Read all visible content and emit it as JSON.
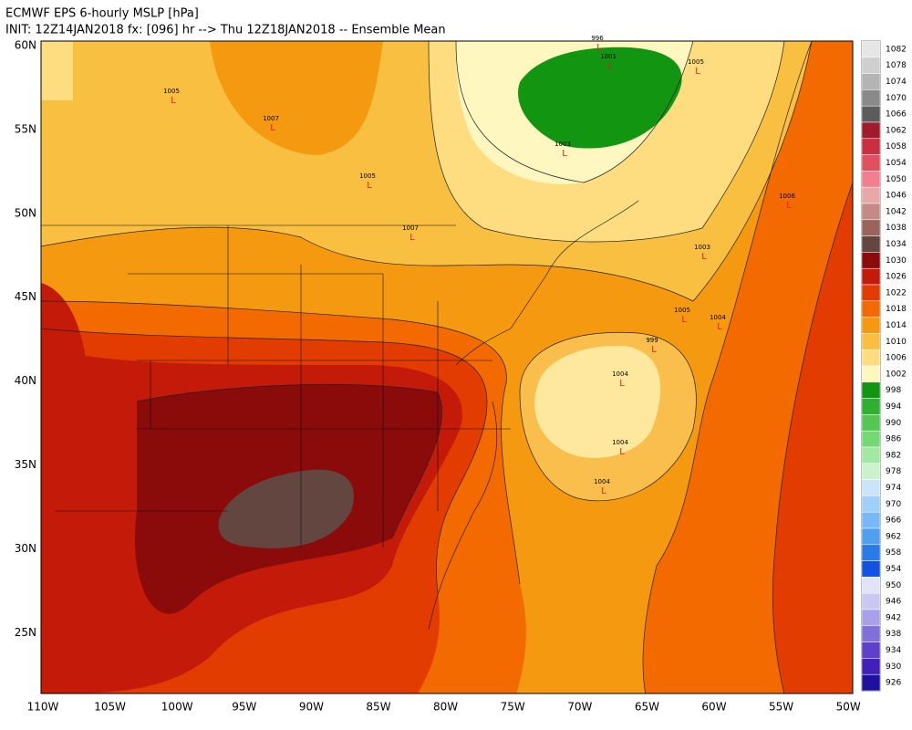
{
  "header": {
    "title": "ECMWF EPS 6-hourly MSLP [hPa]",
    "subtitle": "INIT: 12Z14JAN2018 fx: [096] hr --> Thu 12Z18JAN2018 -- Ensemble Mean"
  },
  "map": {
    "lat_labels": [
      "60N",
      "55N",
      "50N",
      "45N",
      "40N",
      "35N",
      "30N",
      "25N"
    ],
    "lon_labels": [
      "110W",
      "105W",
      "100W",
      "95W",
      "90W",
      "85W",
      "80W",
      "75W",
      "70W",
      "65W",
      "60W",
      "55W",
      "50W"
    ],
    "low_symbol": "L",
    "pressure_labels": [
      "1007",
      "1005",
      "1005",
      "1007",
      "996",
      "1001",
      "1003",
      "1005",
      "999",
      "1004",
      "1004",
      "1004",
      "1005",
      "1004",
      "1006",
      "1003"
    ]
  },
  "colorbar": {
    "levels": [
      {
        "value": 1082,
        "color": "#e6e6e6"
      },
      {
        "value": 1078,
        "color": "#cfcfcf"
      },
      {
        "value": 1074,
        "color": "#b4b4b4"
      },
      {
        "value": 1070,
        "color": "#8a8a8a"
      },
      {
        "value": 1066,
        "color": "#5c5c5c"
      },
      {
        "value": 1062,
        "color": "#a01c2c"
      },
      {
        "value": 1058,
        "color": "#c83040"
      },
      {
        "value": 1054,
        "color": "#e0505e"
      },
      {
        "value": 1050,
        "color": "#f08090"
      },
      {
        "value": 1046,
        "color": "#e8a8a8"
      },
      {
        "value": 1042,
        "color": "#c48a84"
      },
      {
        "value": 1038,
        "color": "#9a645c"
      },
      {
        "value": 1034,
        "color": "#634640"
      },
      {
        "value": 1030,
        "color": "#8b0a0a"
      },
      {
        "value": 1026,
        "color": "#c41a0a"
      },
      {
        "value": 1022,
        "color": "#e33c00"
      },
      {
        "value": 1018,
        "color": "#f26a00"
      },
      {
        "value": 1014,
        "color": "#f59a10"
      },
      {
        "value": 1010,
        "color": "#f9bf40"
      },
      {
        "value": 1006,
        "color": "#fddd80"
      },
      {
        "value": 1002,
        "color": "#fff6c0"
      },
      {
        "value": 998,
        "color": "#129612"
      },
      {
        "value": 994,
        "color": "#30b030"
      },
      {
        "value": 990,
        "color": "#52c852"
      },
      {
        "value": 986,
        "color": "#74d874"
      },
      {
        "value": 982,
        "color": "#a2e8a2"
      },
      {
        "value": 978,
        "color": "#cbf2cb"
      },
      {
        "value": 974,
        "color": "#c8e6f8"
      },
      {
        "value": 970,
        "color": "#a0d0f8"
      },
      {
        "value": 966,
        "color": "#78b8f6"
      },
      {
        "value": 962,
        "color": "#50a0f0"
      },
      {
        "value": 958,
        "color": "#2a7ae8"
      },
      {
        "value": 954,
        "color": "#1252e0"
      },
      {
        "value": 950,
        "color": "#e2e2f8"
      },
      {
        "value": 946,
        "color": "#c8c8f0"
      },
      {
        "value": 942,
        "color": "#a8a0e8"
      },
      {
        "value": 938,
        "color": "#8070d8"
      },
      {
        "value": 934,
        "color": "#6040c8"
      },
      {
        "value": 930,
        "color": "#4020b8"
      },
      {
        "value": 926,
        "color": "#2010a0"
      }
    ]
  }
}
